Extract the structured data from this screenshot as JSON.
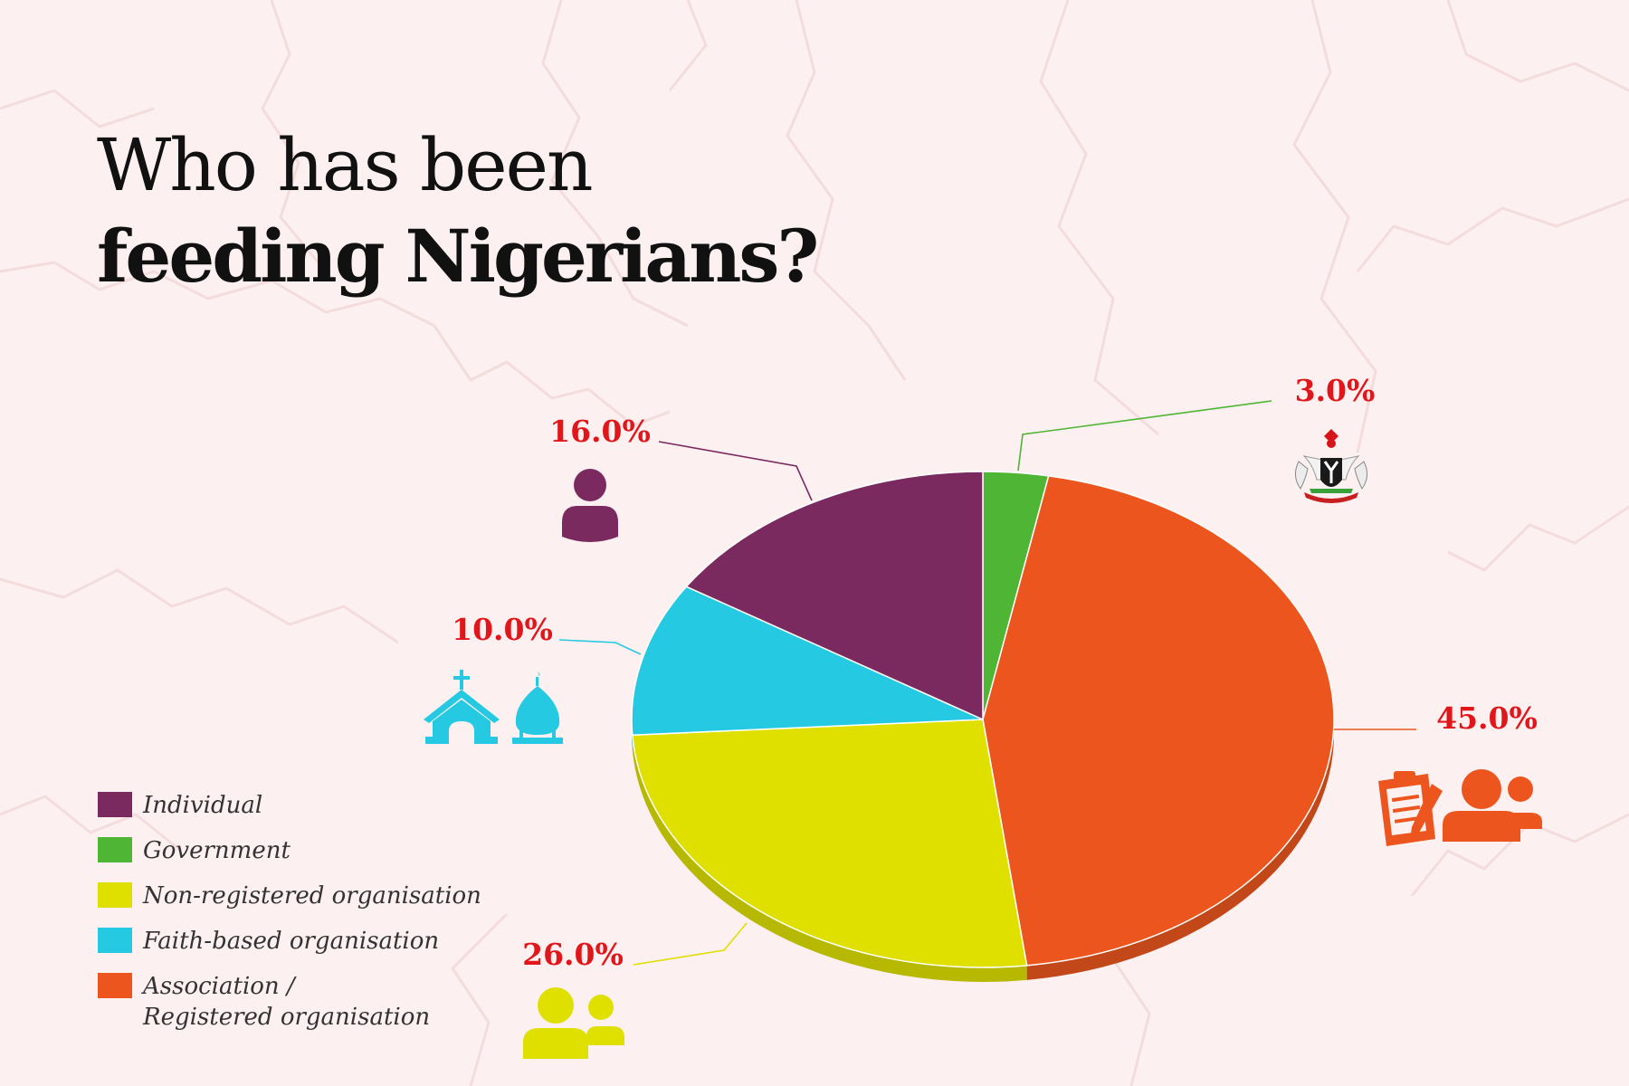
{
  "title": {
    "line1": "Who has been",
    "line2": "feeding Nigerians?"
  },
  "colors": {
    "background": "#fdf0f0",
    "label_text": "#e0161b",
    "individual": "#7b2a5f",
    "government": "#4fb534",
    "non_registered": "#dfe000",
    "faith_based": "#26c9e2",
    "association": "#ec561e"
  },
  "chart_data": {
    "type": "pie",
    "style": "3d-tilted",
    "start": "12 o'clock",
    "direction": "clockwise",
    "slices": [
      {
        "label": "Government",
        "value": 3.0,
        "display": "3.0%",
        "color": "#4fb534",
        "icon": "coat-of-arms-icon"
      },
      {
        "label": "Association / Registered organisation",
        "value": 45.0,
        "display": "45.0%",
        "color": "#ec561e",
        "icon": "clipboard-and-people-icon"
      },
      {
        "label": "Non-registered organisation",
        "value": 26.0,
        "display": "26.0%",
        "color": "#dfe000",
        "icon": "people-icon"
      },
      {
        "label": "Faith-based organisation",
        "value": 10.0,
        "display": "10.0%",
        "color": "#26c9e2",
        "icon": "church-and-mosque-icon"
      },
      {
        "label": "Individual",
        "value": 16.0,
        "display": "16.0%",
        "color": "#7b2a5f",
        "icon": "person-icon"
      }
    ]
  },
  "legend": {
    "position": "bottom-left",
    "items": [
      {
        "label": "Individual",
        "color": "#7b2a5f"
      },
      {
        "label": "Government",
        "color": "#4fb534"
      },
      {
        "label": "Non-registered organisation",
        "color": "#dfe000"
      },
      {
        "label": "Faith-based organisation",
        "color": "#26c9e2"
      },
      {
        "label": "Association /\nRegistered organisation",
        "color": "#ec561e"
      }
    ]
  }
}
